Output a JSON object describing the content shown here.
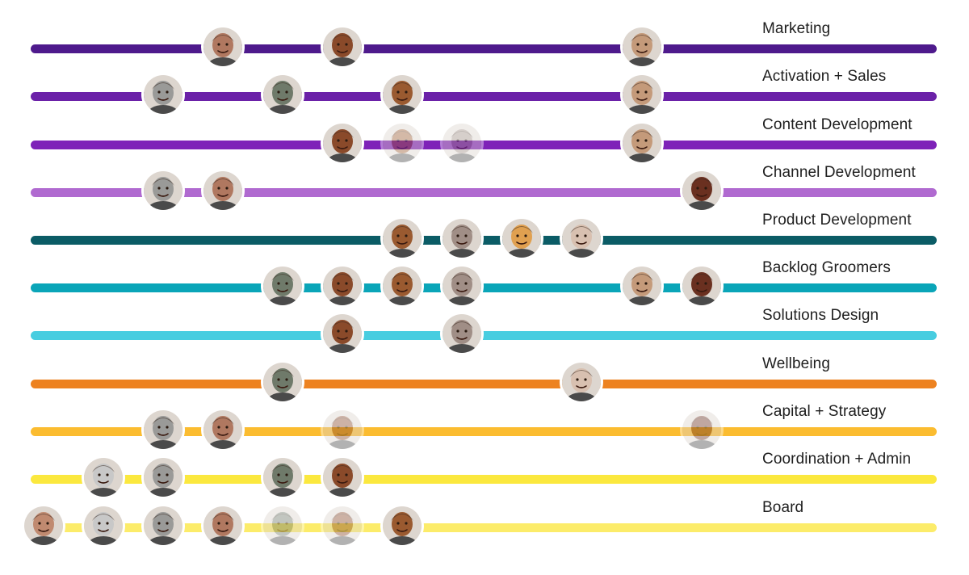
{
  "lanes": [
    {
      "label": "Marketing",
      "color": "#4e1a8c",
      "members": [
        {
          "person": "p2",
          "tone": "#b07860"
        },
        {
          "person": "p3",
          "tone": "#8a4a2a"
        },
        {
          "person": "p1",
          "tone": "#c49a7a"
        }
      ]
    },
    {
      "label": "Activation + Sales",
      "color": "#6b21a8",
      "members": [
        {
          "person": "p4",
          "tone": "#9a9a98"
        },
        {
          "person": "p5",
          "tone": "#6f7a6a"
        },
        {
          "person": "p6",
          "tone": "#9a5a30"
        },
        {
          "person": "p1",
          "tone": "#c49a7a"
        }
      ]
    },
    {
      "label": "Content Development",
      "color": "#7e22b8",
      "members": [
        {
          "person": "p3",
          "tone": "#8a4a2a"
        },
        {
          "person": "p6",
          "tone": "#9a5a30",
          "faded": true
        },
        {
          "person": "p7",
          "tone": "#a08e86",
          "faded": true
        },
        {
          "person": "p1",
          "tone": "#c49a7a"
        }
      ]
    },
    {
      "label": "Channel Development",
      "color": "#b06ad0",
      "members": [
        {
          "person": "p4",
          "tone": "#9a9a98"
        },
        {
          "person": "p2",
          "tone": "#b07860"
        },
        {
          "person": "p8",
          "tone": "#6a3020"
        }
      ]
    },
    {
      "label": "Product Development",
      "color": "#0b5c66",
      "members": [
        {
          "person": "p6",
          "tone": "#9a5a30"
        },
        {
          "person": "p7",
          "tone": "#a08e86"
        },
        {
          "person": "p9",
          "tone": "#e0a050"
        },
        {
          "person": "p10",
          "tone": "#d8c0b0"
        }
      ]
    },
    {
      "label": "Backlog Groomers",
      "color": "#0aa5b8",
      "members": [
        {
          "person": "p5",
          "tone": "#6f7a6a"
        },
        {
          "person": "p3",
          "tone": "#8a4a2a"
        },
        {
          "person": "p6",
          "tone": "#9a5a30"
        },
        {
          "person": "p7",
          "tone": "#a08e86"
        },
        {
          "person": "p1",
          "tone": "#c49a7a"
        },
        {
          "person": "p8",
          "tone": "#6a3020"
        }
      ]
    },
    {
      "label": "Solutions Design",
      "color": "#48cde0",
      "members": [
        {
          "person": "p3",
          "tone": "#8a4a2a"
        },
        {
          "person": "p7",
          "tone": "#a08e86"
        }
      ]
    },
    {
      "label": "Wellbeing",
      "color": "#ed8220",
      "members": [
        {
          "person": "p5",
          "tone": "#6f7a6a"
        },
        {
          "person": "p10",
          "tone": "#d8c0b0"
        }
      ]
    },
    {
      "label": "Capital + Strategy",
      "color": "#fbbc30",
      "members": [
        {
          "person": "p4",
          "tone": "#9a9a98"
        },
        {
          "person": "p2",
          "tone": "#b07860"
        },
        {
          "person": "p3",
          "tone": "#8a4a2a",
          "faded": true
        },
        {
          "person": "p8",
          "tone": "#6a3020",
          "faded": true
        }
      ]
    },
    {
      "label": "Coordination + Admin",
      "color": "#fbe83e",
      "members": [
        {
          "person": "p11",
          "tone": "#c8c8c8"
        },
        {
          "person": "p4",
          "tone": "#9a9a98"
        },
        {
          "person": "p5",
          "tone": "#6f7a6a"
        },
        {
          "person": "p3",
          "tone": "#8a4a2a"
        }
      ]
    },
    {
      "label": "Board",
      "color": "#fcec6a",
      "members": [
        {
          "person": "p12",
          "tone": "#c08a70"
        },
        {
          "person": "p11",
          "tone": "#c8c8c8"
        },
        {
          "person": "p4",
          "tone": "#9a9a98"
        },
        {
          "person": "p2",
          "tone": "#b07860"
        },
        {
          "person": "p5",
          "tone": "#6f7a6a",
          "faded": true
        },
        {
          "person": "p3",
          "tone": "#8a4a2a",
          "faded": true
        },
        {
          "person": "p6",
          "tone": "#9a5a30"
        }
      ]
    }
  ]
}
